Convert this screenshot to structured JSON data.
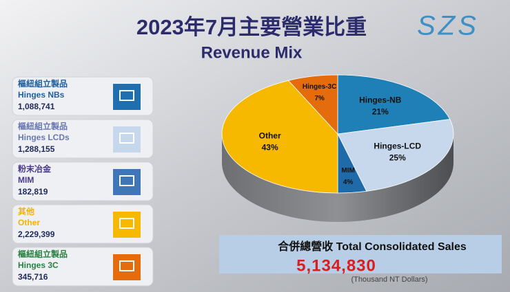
{
  "header": {
    "title": "2023年7月主要營業比重",
    "subtitle": "Revenue Mix",
    "logo": "SZS"
  },
  "chart_data": {
    "type": "pie",
    "categories": [
      "Hinges-NB",
      "Hinges-LCD",
      "MIM",
      "Other",
      "Hinges-3C"
    ],
    "values": [
      21,
      25,
      4,
      43,
      7
    ],
    "value_labels": [
      "21%",
      "25%",
      "4%",
      "43%",
      "7%"
    ],
    "colors": [
      "#1f80b8",
      "#c7d8ec",
      "#1f6aa8",
      "#f6b900",
      "#e46c0c"
    ]
  },
  "cards": [
    {
      "line1": "樞紐組立製品",
      "line2": "Hinges  NBs",
      "value": "1,088,741"
    },
    {
      "line1": "樞紐組立製品",
      "line2": "Hinges  LCDs",
      "value": "1,288,155"
    },
    {
      "line1": "粉末冶金",
      "line2": "MIM",
      "value": "182,819"
    },
    {
      "line1": "其他",
      "line2": "Other",
      "value": "2,229,399"
    },
    {
      "line1": "樞紐組立製品",
      "line2": "Hinges  3C",
      "value": "345,716"
    }
  ],
  "total": {
    "label": "合併總營收 Total Consolidated Sales",
    "value": "5,134,830",
    "unit": "(Thousand NT Dollars)"
  }
}
